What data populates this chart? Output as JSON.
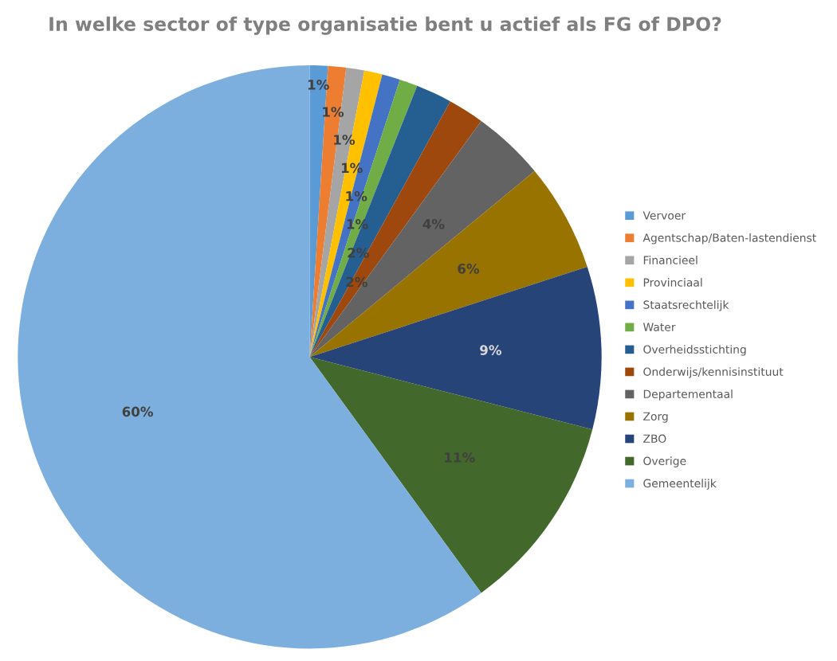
{
  "chart_data": {
    "type": "pie",
    "title": "In welke sector of type organisatie bent u actief als FG of DPO?",
    "categories": [
      "Vervoer",
      "Agentschap/Baten-lastendienst",
      "Financieel",
      "Provinciaal",
      "Staatsrechtelijk",
      "Water",
      "Overheidsstichting",
      "Onderwijs/kennisinstituut",
      "Departementaal",
      "Zorg",
      "ZBO",
      "Overige",
      "Gemeentelijk"
    ],
    "values": [
      1,
      1,
      1,
      1,
      1,
      1,
      2,
      2,
      4,
      6,
      9,
      11,
      60
    ],
    "colors": [
      "#5b9bd5",
      "#ed7d31",
      "#a5a5a5",
      "#ffc000",
      "#4472c4",
      "#70ad47",
      "#255e91",
      "#9e480e",
      "#636363",
      "#997300",
      "#264478",
      "#43682b",
      "#7cafdd"
    ],
    "value_labels": [
      "1%",
      "1%",
      "1%",
      "1%",
      "1%",
      "1%",
      "2%",
      "2%",
      "4%",
      "6%",
      "9%",
      "11%",
      "60%"
    ],
    "legend": "right"
  }
}
